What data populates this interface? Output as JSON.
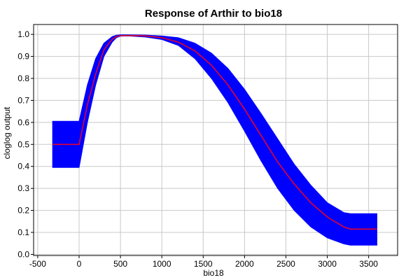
{
  "chart_data": {
    "type": "line",
    "title": "Response of Arthir to bio18",
    "xlabel": "bio18",
    "ylabel": "cloglog output",
    "xlim": [
      -550,
      3850
    ],
    "ylim": [
      -0.005,
      1.045
    ],
    "x_ticks": [
      -500,
      0,
      500,
      1000,
      1500,
      2000,
      2500,
      3000,
      3500
    ],
    "x_tick_labels": [
      "-500",
      "0",
      "500",
      "1000",
      "1500",
      "2000",
      "2500",
      "3000",
      "3500"
    ],
    "y_ticks": [
      0.0,
      0.1,
      0.2,
      0.3,
      0.4,
      0.5,
      0.6,
      0.7,
      0.8,
      0.9,
      1.0
    ],
    "y_tick_labels": [
      "0.0",
      "0.1",
      "0.2",
      "0.3",
      "0.4",
      "0.5",
      "0.6",
      "0.7",
      "0.8",
      "0.9",
      "1.0"
    ],
    "grid": true,
    "colors": {
      "band": "#0000ff",
      "mean": "#e8002a"
    },
    "series": [
      {
        "role": "mean",
        "x": [
          -320,
          0,
          100,
          200,
          300,
          400,
          450,
          500,
          600,
          800,
          1000,
          1200,
          1400,
          1600,
          1800,
          2000,
          2200,
          2400,
          2600,
          2800,
          3000,
          3200,
          3280,
          3600
        ],
        "y": [
          0.5,
          0.5,
          0.68,
          0.82,
          0.93,
          0.978,
          0.99,
          0.994,
          0.995,
          0.993,
          0.985,
          0.965,
          0.925,
          0.86,
          0.77,
          0.66,
          0.54,
          0.42,
          0.32,
          0.235,
          0.17,
          0.125,
          0.115,
          0.115
        ]
      },
      {
        "role": "band-upper",
        "x": [
          -320,
          0,
          100,
          200,
          300,
          400,
          450,
          500,
          600,
          800,
          1000,
          1200,
          1400,
          1600,
          1800,
          2000,
          2200,
          2400,
          2600,
          2800,
          3000,
          3200,
          3280,
          3600
        ],
        "y": [
          0.605,
          0.605,
          0.77,
          0.89,
          0.96,
          0.99,
          0.996,
          0.998,
          0.998,
          0.997,
          0.993,
          0.985,
          0.96,
          0.915,
          0.845,
          0.75,
          0.64,
          0.525,
          0.41,
          0.315,
          0.235,
          0.19,
          0.185,
          0.185
        ]
      },
      {
        "role": "band-lower",
        "x": [
          -320,
          0,
          100,
          200,
          300,
          400,
          450,
          500,
          600,
          800,
          1000,
          1200,
          1400,
          1600,
          1800,
          2000,
          2200,
          2400,
          2600,
          2800,
          3000,
          3200,
          3280,
          3600
        ],
        "y": [
          0.395,
          0.395,
          0.6,
          0.77,
          0.9,
          0.965,
          0.985,
          0.992,
          0.993,
          0.988,
          0.977,
          0.95,
          0.89,
          0.8,
          0.69,
          0.56,
          0.425,
          0.3,
          0.2,
          0.125,
          0.075,
          0.048,
          0.042,
          0.042
        ]
      }
    ]
  }
}
